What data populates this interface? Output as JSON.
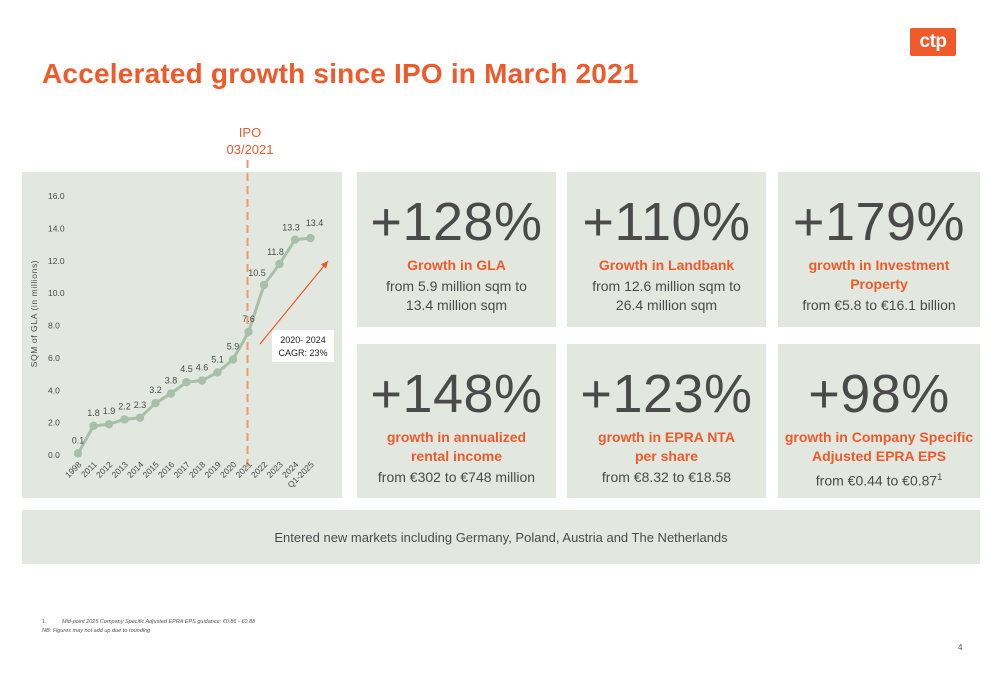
{
  "logo": "ctp",
  "title": "Accelerated growth since IPO in March 2021",
  "ipo_marker": {
    "line1": "IPO",
    "line2": "03/2021"
  },
  "chart_data": {
    "type": "line",
    "ylabel": "SQM of GLA (in millions)",
    "ylim": [
      0,
      16
    ],
    "yticks": [
      "0.0",
      "2.0",
      "4.0",
      "6.0",
      "8.0",
      "10.0",
      "12.0",
      "14.0",
      "16.0"
    ],
    "categories": [
      "1998",
      "2011",
      "2012",
      "2013",
      "2014",
      "2015",
      "2016",
      "2017",
      "2018",
      "2019",
      "2020",
      "2021",
      "2022",
      "2023",
      "2024",
      "Q1-2025"
    ],
    "values": [
      0.1,
      1.8,
      1.9,
      2.2,
      2.3,
      3.2,
      3.8,
      4.5,
      4.6,
      5.1,
      5.9,
      7.6,
      10.5,
      11.8,
      13.3,
      13.4
    ],
    "value_labels": [
      "0.1",
      "1.8",
      "1.9",
      "2.2",
      "2.3",
      "3.2",
      "3.8",
      "4.5",
      "4.6",
      "5.1",
      "5.9",
      "7.6",
      "10.5",
      "11.8",
      "13.3",
      "13.4"
    ],
    "annotation": {
      "line1": "2020- 2024",
      "line2": "CAGR: 23%"
    },
    "colors": {
      "line": "#a8bfa9",
      "marker": "#a8bfa9",
      "ipo_line": "#ef9a6e",
      "arrow": "#ee5a2a"
    }
  },
  "cards": [
    {
      "big": "+128%",
      "label": [
        "Growth in GLA"
      ],
      "desc": [
        "from 5.9 million sqm to",
        "13.4 million sqm"
      ]
    },
    {
      "big": "+110%",
      "label": [
        "Growth in Landbank"
      ],
      "desc": [
        "from 12.6 million sqm to",
        "26.4 million sqm"
      ]
    },
    {
      "big": "+179%",
      "label": [
        "growth in Investment",
        "Property"
      ],
      "desc": [
        "from €5.8 to €16.1 billion"
      ]
    },
    {
      "big": "+148%",
      "label": [
        "growth in annualized",
        "rental income"
      ],
      "desc": [
        "from €302 to €748 million"
      ]
    },
    {
      "big": "+123%",
      "label": [
        "growth in EPRA NTA",
        "per share"
      ],
      "desc": [
        "from €8.32 to €18.58"
      ]
    },
    {
      "big": "+98%",
      "label": [
        "growth in Company Specific",
        "Adjusted EPRA EPS"
      ],
      "desc": [
        "from €0.44 to €0.87"
      ],
      "desc_sup": "1"
    }
  ],
  "banner": "Entered new markets including Germany, Poland, Austria and The Netherlands",
  "footnotes": {
    "num": "1.",
    "line1": "Mid-point 2025 Company Specific Adjusted EPRA EPS guidance: €0.86 - €0.88",
    "line2": "NB: Figures may not add up due to rounding"
  },
  "page_number": "4",
  "colors": {
    "accent": "#ee5a2a",
    "panel": "#e2e8e0",
    "text": "#4a4a4a"
  }
}
